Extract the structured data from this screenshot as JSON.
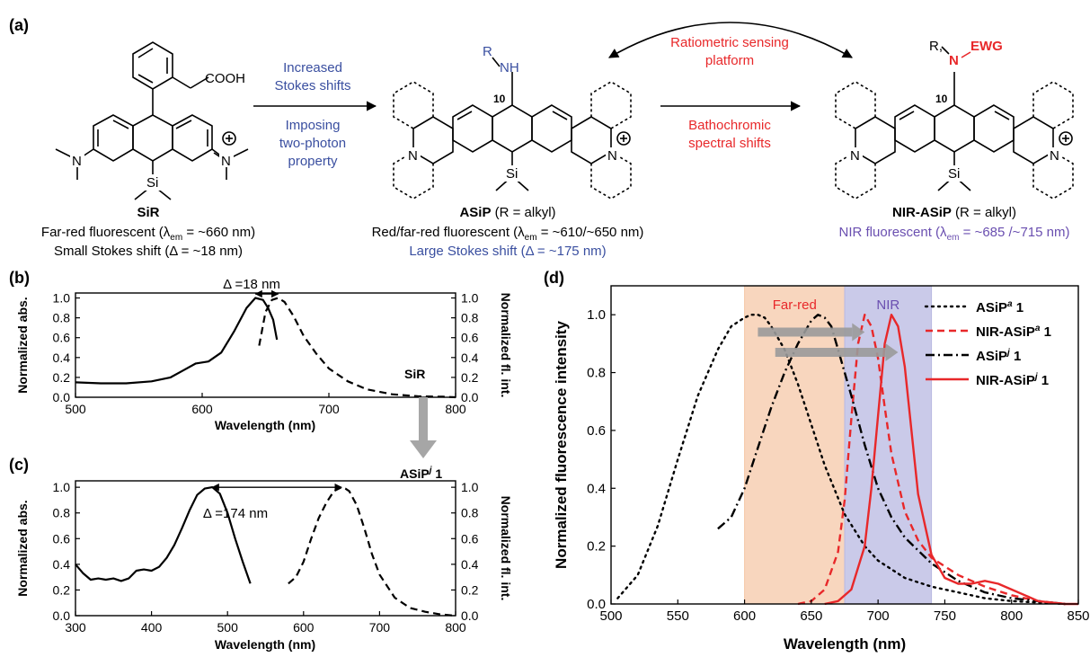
{
  "panel_a": {
    "label": "(a)",
    "sir": {
      "cooh": "COOH",
      "name": "SiR",
      "line1_pre": "Far-red fluorescent (λ",
      "line1_sub": "em",
      "line1_post": " = ~660 nm)",
      "line2": "Small Stokes shift (Δ = ~18 nm)"
    },
    "arrow1": {
      "top1": "Increased",
      "top2": "Stokes shifts",
      "bottom1": "Imposing",
      "bottom2": "two-photon",
      "bottom3": "property"
    },
    "asip": {
      "r": "R",
      "nh": "NH",
      "pos": "10",
      "name": "ASiP",
      "name_suffix": " (R = alkyl)",
      "line1_pre": "Red/far-red fluorescent (λ",
      "line1_sub": "em",
      "line1_post": " = ~610/~650 nm)",
      "line2": "Large Stokes shift (Δ = ~175 nm)"
    },
    "arrow2": {
      "top1": "Ratiometric sensing",
      "top2": "platform",
      "bottom1": "Bathochromic",
      "bottom2": "spectral shifts"
    },
    "nirasip": {
      "r": "R,",
      "n": "N",
      "ewg": "EWG",
      "pos": "10",
      "name": "NIR-ASiP",
      "name_suffix": " (R = alkyl)",
      "line1_pre": "NIR fluorescent (λ",
      "line1_sub": "em",
      "line1_post": " = ~685 /~715 nm)"
    }
  },
  "chart_data": [
    {
      "panel": "(b)",
      "type": "line",
      "xlabel": "Wavelength (nm)",
      "ylabel_left": "Normalized abs.",
      "ylabel_right": "Normalized fl. int.",
      "xlim": [
        500,
        800
      ],
      "ylim": [
        0,
        1.05
      ],
      "xticks": [
        "500",
        "600",
        "700",
        "800"
      ],
      "yticks": [
        "0.0",
        "0.2",
        "0.4",
        "0.6",
        "0.8",
        "1.0"
      ],
      "annotation": "Δ =18 nm",
      "compound_label": "SiR",
      "series": [
        {
          "style": "solid",
          "x": [
            500,
            520,
            540,
            560,
            575,
            585,
            595,
            605,
            615,
            625,
            635,
            642,
            648,
            652,
            656,
            659
          ],
          "y": [
            0.15,
            0.14,
            0.14,
            0.16,
            0.2,
            0.27,
            0.34,
            0.36,
            0.45,
            0.66,
            0.9,
            1.0,
            0.98,
            0.9,
            0.78,
            0.58
          ]
        },
        {
          "style": "dashed",
          "x": [
            645,
            650,
            655,
            660,
            665,
            672,
            680,
            690,
            700,
            715,
            730,
            750,
            770,
            790,
            800
          ],
          "y": [
            0.52,
            0.86,
            0.98,
            1.0,
            0.96,
            0.82,
            0.62,
            0.44,
            0.29,
            0.16,
            0.08,
            0.03,
            0.01,
            0.005,
            0.0
          ]
        }
      ]
    },
    {
      "panel": "(c)",
      "type": "line",
      "xlabel": "Wavelength (nm)",
      "ylabel_left": "Normalized abs.",
      "ylabel_right": "Normalized fl. int.",
      "xlim": [
        300,
        800
      ],
      "ylim": [
        0,
        1.05
      ],
      "xticks": [
        "300",
        "400",
        "500",
        "600",
        "700",
        "800"
      ],
      "yticks": [
        "0.0",
        "0.2",
        "0.4",
        "0.6",
        "0.8",
        "1.0"
      ],
      "annotation": "Δ =174 nm",
      "compound_label": "ASiP",
      "compound_sup": "j",
      "compound_num": " 1",
      "series": [
        {
          "style": "solid",
          "x": [
            300,
            310,
            320,
            330,
            340,
            350,
            360,
            370,
            380,
            390,
            400,
            410,
            420,
            430,
            440,
            450,
            460,
            470,
            480,
            490,
            500,
            510,
            520,
            530
          ],
          "y": [
            0.4,
            0.33,
            0.28,
            0.29,
            0.28,
            0.29,
            0.27,
            0.29,
            0.35,
            0.36,
            0.35,
            0.38,
            0.45,
            0.55,
            0.68,
            0.82,
            0.94,
            0.99,
            1.0,
            0.95,
            0.8,
            0.6,
            0.42,
            0.25
          ]
        },
        {
          "style": "dashed",
          "x": [
            580,
            590,
            600,
            610,
            620,
            630,
            640,
            650,
            655,
            660,
            670,
            680,
            690,
            700,
            720,
            740,
            760,
            780,
            800
          ],
          "y": [
            0.25,
            0.3,
            0.42,
            0.6,
            0.76,
            0.88,
            0.97,
            1.0,
            0.99,
            0.97,
            0.86,
            0.68,
            0.48,
            0.32,
            0.14,
            0.06,
            0.03,
            0.01,
            0.0
          ]
        }
      ]
    },
    {
      "panel": "(d)",
      "type": "line",
      "xlabel": "Wavelength (nm)",
      "ylabel": "Normalized fluorescence intensity",
      "xlim": [
        500,
        850
      ],
      "ylim": [
        0,
        1.1
      ],
      "xticks": [
        "500",
        "550",
        "600",
        "650",
        "700",
        "750",
        "800",
        "850"
      ],
      "yticks": [
        "0.0",
        "0.2",
        "0.4",
        "0.6",
        "0.8",
        "1.0"
      ],
      "bands": [
        {
          "label": "Far-red",
          "from": 600,
          "to": 675,
          "color": "#f6c8a8",
          "text_color": "#e8282a"
        },
        {
          "label": "NIR",
          "from": 675,
          "to": 740,
          "color": "#b8b8e2",
          "text_color": "#6a4fb0"
        }
      ],
      "series": [
        {
          "name": "ASiP",
          "sup": "a",
          "num": " 1",
          "style": "dotted",
          "color": "#000000",
          "x": [
            505,
            520,
            535,
            550,
            565,
            580,
            590,
            600,
            605,
            610,
            615,
            620,
            630,
            640,
            650,
            660,
            675,
            690,
            700,
            720,
            740,
            760,
            780,
            800,
            820,
            840
          ],
          "y": [
            0.02,
            0.1,
            0.27,
            0.5,
            0.72,
            0.88,
            0.96,
            0.99,
            1.0,
            1.0,
            0.99,
            0.96,
            0.88,
            0.76,
            0.62,
            0.48,
            0.31,
            0.2,
            0.15,
            0.09,
            0.06,
            0.04,
            0.02,
            0.01,
            0.005,
            0.0
          ]
        },
        {
          "name": "NIR-ASiP",
          "sup": "a",
          "num": " 1",
          "style": "dashed",
          "color": "#e8282a",
          "x": [
            640,
            650,
            660,
            670,
            675,
            680,
            685,
            690,
            695,
            700,
            705,
            710,
            720,
            730,
            740,
            760,
            780,
            800,
            820,
            840
          ],
          "y": [
            0.0,
            0.01,
            0.05,
            0.18,
            0.36,
            0.64,
            0.9,
            1.0,
            0.96,
            0.85,
            0.68,
            0.52,
            0.32,
            0.22,
            0.16,
            0.1,
            0.06,
            0.03,
            0.01,
            0.0
          ]
        },
        {
          "name": "ASiP",
          "sup": "j",
          "num": " 1",
          "style": "dashdot",
          "color": "#000000",
          "x": [
            580,
            590,
            600,
            610,
            620,
            630,
            640,
            650,
            655,
            660,
            665,
            670,
            680,
            690,
            700,
            710,
            720,
            740,
            760,
            780,
            800,
            820,
            840
          ],
          "y": [
            0.26,
            0.3,
            0.4,
            0.54,
            0.68,
            0.8,
            0.9,
            0.98,
            1.0,
            0.99,
            0.96,
            0.88,
            0.72,
            0.55,
            0.4,
            0.3,
            0.23,
            0.14,
            0.08,
            0.04,
            0.02,
            0.01,
            0.0
          ]
        },
        {
          "name": "NIR-ASiP",
          "sup": "j",
          "num": " 1",
          "style": "solid",
          "color": "#e8282a",
          "x": [
            660,
            670,
            680,
            690,
            695,
            700,
            705,
            710,
            715,
            720,
            725,
            730,
            740,
            750,
            760,
            770,
            780,
            790,
            800,
            810,
            820,
            830,
            840,
            850
          ],
          "y": [
            0.0,
            0.01,
            0.05,
            0.2,
            0.4,
            0.65,
            0.9,
            1.0,
            0.96,
            0.82,
            0.6,
            0.38,
            0.17,
            0.09,
            0.07,
            0.07,
            0.08,
            0.07,
            0.05,
            0.03,
            0.01,
            0.005,
            0.0,
            0.0
          ]
        }
      ],
      "arrow_color": "#9a9a9a"
    }
  ]
}
